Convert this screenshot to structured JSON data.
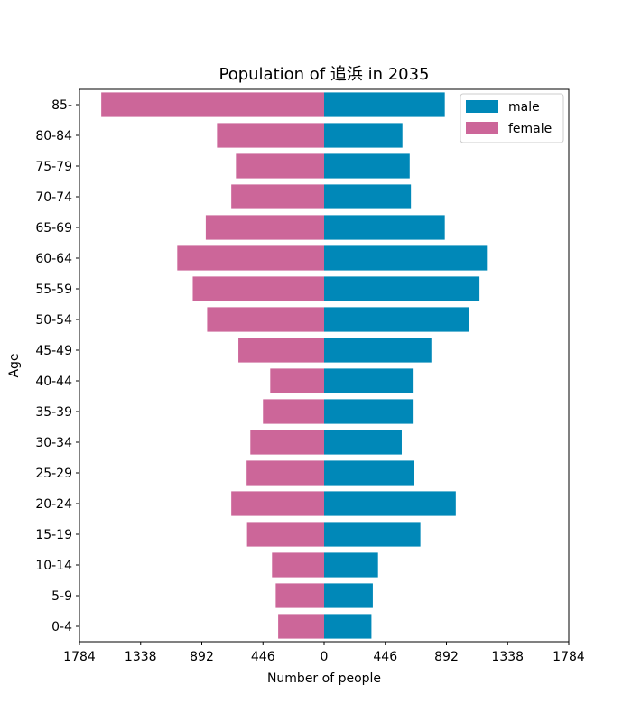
{
  "chart_data": {
    "type": "bar",
    "orientation": "horizontal",
    "title": "Population of 追浜 in 2035",
    "xlabel": "Number of people",
    "ylabel": "Age",
    "categories": [
      "0-4",
      "5-9",
      "10-14",
      "15-19",
      "20-24",
      "25-29",
      "30-34",
      "35-39",
      "40-44",
      "45-49",
      "50-54",
      "55-59",
      "60-64",
      "65-69",
      "70-74",
      "75-79",
      "80-84",
      "85-"
    ],
    "series": [
      {
        "name": "male",
        "color": "#0088b8",
        "values": [
          345,
          355,
          393,
          702,
          960,
          658,
          566,
          646,
          646,
          782,
          1058,
          1133,
          1187,
          880,
          633,
          624,
          571,
          880
        ]
      },
      {
        "name": "female",
        "color": "#cc6699",
        "values": [
          335,
          353,
          380,
          562,
          677,
          565,
          538,
          446,
          393,
          625,
          853,
          958,
          1071,
          863,
          677,
          643,
          781,
          1625
        ]
      }
    ],
    "xlim": [
      -1784,
      1784
    ],
    "xticks": [
      "1784",
      "1338",
      "892",
      "446",
      "0",
      "446",
      "892",
      "1338",
      "1784"
    ],
    "xtick_values": [
      -1784,
      -1338,
      -892,
      -446,
      0,
      446,
      892,
      1338,
      1784
    ],
    "legend": {
      "placement": "upper right",
      "entries": [
        "male",
        "female"
      ]
    },
    "grid": false
  }
}
